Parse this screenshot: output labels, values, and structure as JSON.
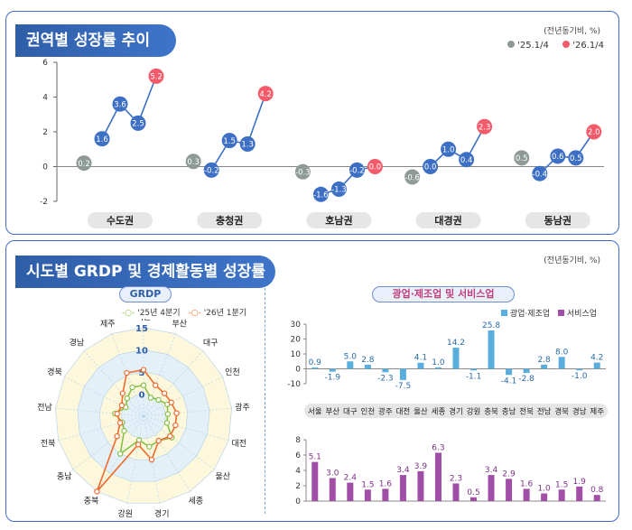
{
  "colors": {
    "q4_2025": "#8e9a94",
    "q1_2026": "#f45b6a",
    "line_blue": "#3c6fc5",
    "point_blue": "#3d6fc4",
    "grdp_q4": "#86c04a",
    "grdp_q1": "#ee6b2e",
    "mining_bar": "#5aaede",
    "service_bar": "#a04ea6",
    "header_blue": "#2f5ea8"
  },
  "top": {
    "title": "권역별 성장률 추이",
    "unit": "(전년동기비, %)",
    "legend": [
      "'25.1/4",
      "'26.1/4"
    ]
  },
  "bottom": {
    "title": "시도별 GRDP 및 경제활동별 성장률",
    "unit": "(전년동기비, %)",
    "radar_title": "GRDP",
    "radar_legend": [
      "'25년 4분기",
      "'26년 1분기"
    ],
    "bars_title": "광업·제조업 및 서비스업",
    "bars_legend": [
      "광업·제조업",
      "서비스업"
    ]
  },
  "chart_data": [
    {
      "type": "line",
      "title": "권역별 성장률 추이",
      "ylim": [
        -2,
        6
      ],
      "yticks": [
        -2,
        0,
        2,
        4,
        6
      ],
      "categories": [
        "수도권",
        "충청권",
        "호남권",
        "대경권",
        "동남권"
      ],
      "series": [
        {
          "region": "수도권",
          "values": [
            0.2,
            1.6,
            3.6,
            2.5,
            5.2
          ]
        },
        {
          "region": "충청권",
          "values": [
            0.3,
            -0.2,
            1.5,
            1.3,
            4.2
          ]
        },
        {
          "region": "호남권",
          "values": [
            -0.3,
            -1.6,
            -1.3,
            -0.2,
            0.0
          ]
        },
        {
          "region": "대경권",
          "values": [
            -0.6,
            0.0,
            1.0,
            0.4,
            2.3
          ]
        },
        {
          "region": "동남권",
          "values": [
            0.5,
            -0.4,
            0.6,
            0.5,
            2.0
          ]
        }
      ],
      "value_labels": {
        "수도권": [
          "0.2",
          "1.6",
          "3.6",
          "2.5",
          "5.2"
        ],
        "충청권": [
          "0.3",
          "-0.2",
          "1.5",
          "1.3",
          "4.2"
        ],
        "호남권": [
          "-0.3",
          "-1.6",
          "-1.3",
          "-0.2",
          "0.0"
        ],
        "대경권": [
          "-0.6",
          "0.0",
          "1.0",
          "0.4",
          "2.3"
        ],
        "동남권": [
          "0.5",
          "-0.4",
          "0.6",
          "0.5",
          "2.0"
        ]
      }
    },
    {
      "type": "radar",
      "title": "GRDP",
      "axes": [
        "서울",
        "부산",
        "대구",
        "인천",
        "광주",
        "대전",
        "울산",
        "세종",
        "경기",
        "강원",
        "충북",
        "충남",
        "전북",
        "전남",
        "경북",
        "경남",
        "제주"
      ],
      "rticks": [
        -5,
        0,
        5,
        10,
        15
      ],
      "rlim": [
        -5,
        15
      ],
      "series": [
        {
          "name": "'25년 4분기",
          "values": [
            2.0,
            -0.5,
            0.0,
            1.0,
            0.5,
            0.5,
            3.0,
            1.5,
            2.0,
            0.5,
            5.0,
            0.5,
            0.0,
            1.5,
            -0.5,
            0.5,
            2.0
          ]
        },
        {
          "name": "'26년 1분기",
          "values": [
            5.5,
            2.5,
            2.0,
            2.0,
            2.5,
            2.5,
            2.5,
            1.5,
            5.0,
            1.5,
            15.0,
            2.5,
            0.5,
            1.0,
            0.5,
            2.0,
            5.5
          ]
        }
      ]
    },
    {
      "type": "bar",
      "title": "광업·제조업 및 서비스업",
      "categories": [
        "서울",
        "부산",
        "대구",
        "인천",
        "광주",
        "대전",
        "울산",
        "세종",
        "경기",
        "강원",
        "충북",
        "충남",
        "전북",
        "전남",
        "경북",
        "경남",
        "제주"
      ],
      "series": [
        {
          "name": "광업·제조업",
          "values": [
            0.9,
            -1.9,
            5.0,
            2.8,
            -2.3,
            -7.5,
            4.1,
            1.0,
            14.2,
            -1.1,
            25.8,
            -4.1,
            -2.8,
            2.8,
            8.0,
            -1.0,
            4.2
          ],
          "ylim": [
            -10,
            30
          ],
          "yticks": [
            -10,
            0,
            10,
            20,
            30
          ]
        },
        {
          "name": "서비스업",
          "values": [
            5.1,
            3.0,
            2.4,
            1.5,
            1.6,
            3.4,
            3.9,
            6.3,
            2.3,
            0.5,
            3.4,
            2.9,
            1.6,
            1.0,
            1.5,
            1.9,
            0.8
          ],
          "ylim": [
            0,
            8
          ],
          "yticks": [
            0,
            2,
            4,
            6,
            8
          ]
        }
      ],
      "value_labels": {
        "광업·제조업": [
          "0.9",
          "-1.9",
          "5.0",
          "2.8",
          "-2.3",
          "-7.5",
          "4.1",
          "1.0",
          "14.2",
          "-1.1",
          "25.8",
          "-4.1",
          "-2.8",
          "2.8",
          "8.0",
          "-1.0",
          "4.2"
        ],
        "서비스업": [
          "5.1",
          "3.0",
          "2.4",
          "1.5",
          "1.6",
          "3.4",
          "3.9",
          "6.3",
          "2.3",
          "0.5",
          "3.4",
          "2.9",
          "1.6",
          "1.0",
          "1.5",
          "1.9",
          "0.8"
        ]
      }
    }
  ]
}
